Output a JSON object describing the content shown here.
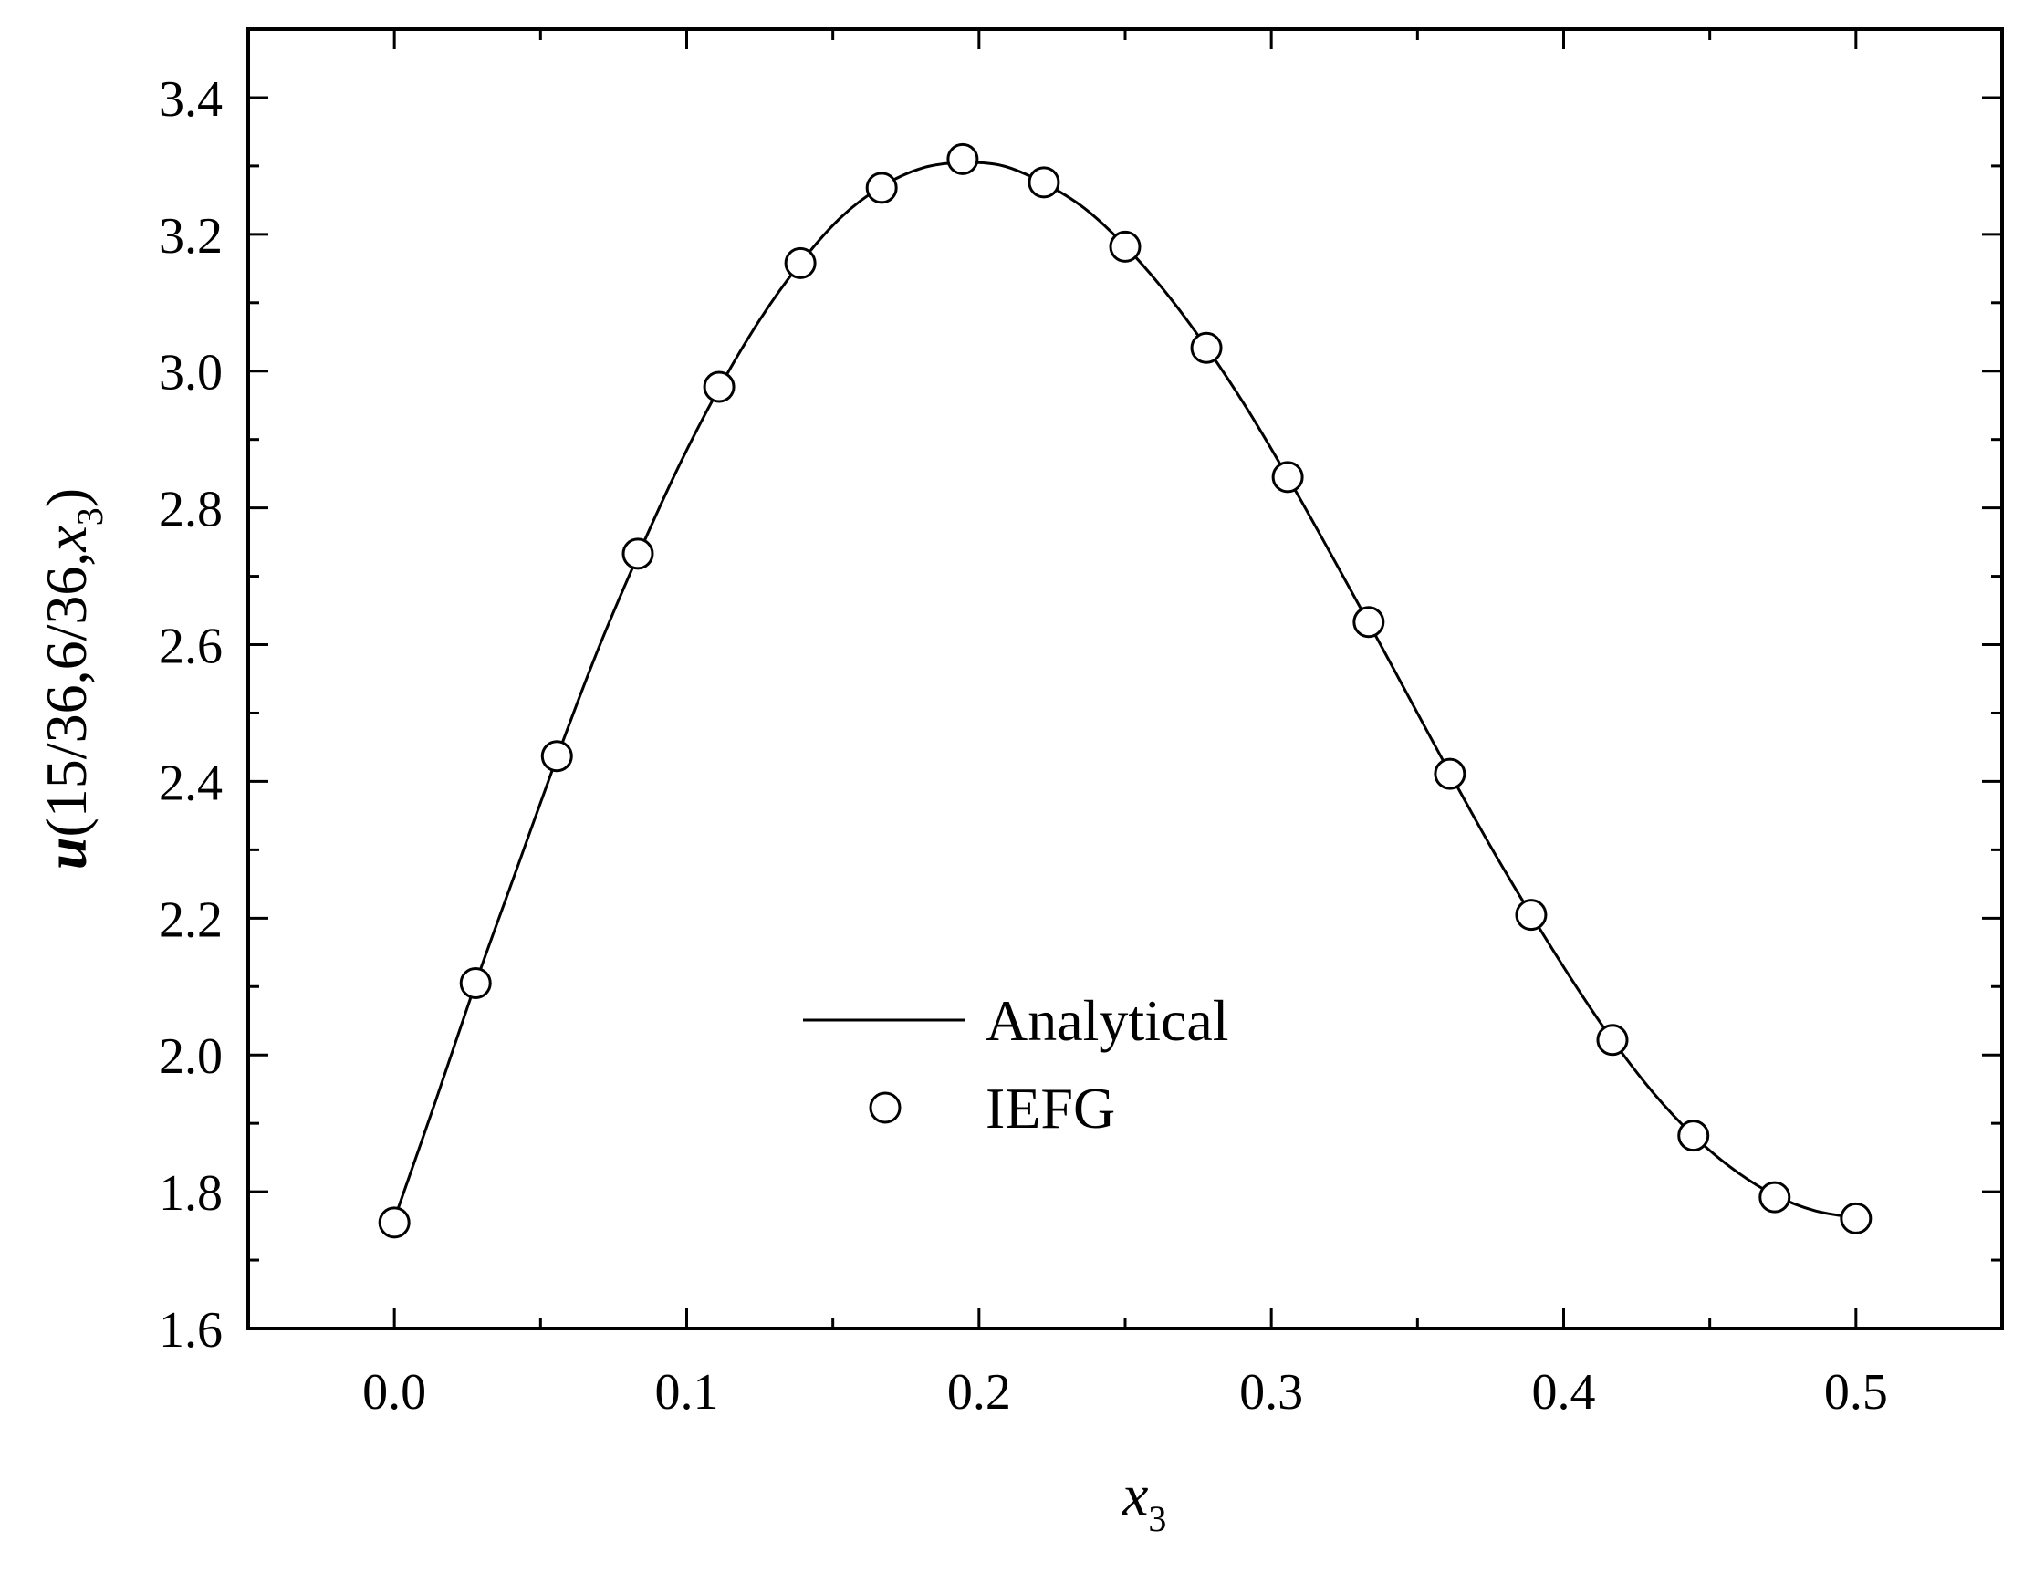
{
  "chart_data": {
    "type": "line",
    "title": "",
    "xlabel": {
      "main": "x",
      "sub": "3"
    },
    "ylabel": {
      "prefix": "u",
      "main": "(15/36,6/36,",
      "var": "x",
      "sub": "3",
      "close": ")"
    },
    "xlim": [
      -0.05,
      0.55
    ],
    "ylim": [
      1.6,
      3.5
    ],
    "xticks": [
      0.0,
      0.1,
      0.2,
      0.3,
      0.4,
      0.5
    ],
    "xtick_labels": [
      "0.0",
      "0.1",
      "0.2",
      "0.3",
      "0.4",
      "0.5"
    ],
    "yticks": [
      1.6,
      1.8,
      2.0,
      2.2,
      2.4,
      2.6,
      2.8,
      3.0,
      3.2,
      3.4
    ],
    "ytick_labels": [
      "1.6",
      "1.8",
      "2.0",
      "2.2",
      "2.4",
      "2.6",
      "2.8",
      "3.0",
      "3.2",
      "3.4"
    ],
    "grid": false,
    "legend_position": "center-bottom",
    "series": [
      {
        "name": "Analytical",
        "style": "line",
        "color": "#000000",
        "x": [
          0.0,
          0.0139,
          0.0278,
          0.0417,
          0.0556,
          0.0694,
          0.0833,
          0.0972,
          0.1111,
          0.125,
          0.1389,
          0.1528,
          0.1667,
          0.1806,
          0.1944,
          0.2083,
          0.2222,
          0.2361,
          0.25,
          0.2639,
          0.2778,
          0.2917,
          0.3056,
          0.3194,
          0.3333,
          0.3472,
          0.3611,
          0.375,
          0.3889,
          0.4028,
          0.4167,
          0.4306,
          0.4444,
          0.4583,
          0.4722,
          0.4861,
          0.5
        ],
        "y": [
          1.76,
          1.93,
          2.105,
          2.27,
          2.435,
          2.59,
          2.73,
          2.86,
          2.975,
          3.075,
          3.158,
          3.225,
          3.27,
          3.297,
          3.305,
          3.3,
          3.275,
          3.238,
          3.183,
          3.115,
          3.035,
          2.945,
          2.845,
          2.74,
          2.632,
          2.522,
          2.412,
          2.305,
          2.205,
          2.11,
          2.022,
          1.945,
          1.882,
          1.832,
          1.795,
          1.772,
          1.762
        ]
      },
      {
        "name": "IEFG",
        "style": "open-circle",
        "color": "#000000",
        "x": [
          0.0,
          0.0278,
          0.0556,
          0.0833,
          0.1111,
          0.1389,
          0.1667,
          0.1944,
          0.2222,
          0.25,
          0.2778,
          0.3056,
          0.3333,
          0.3611,
          0.3889,
          0.4167,
          0.4444,
          0.4722,
          0.5
        ],
        "y": [
          1.755,
          2.105,
          2.437,
          2.733,
          2.977,
          3.158,
          3.268,
          3.31,
          3.276,
          3.182,
          3.034,
          2.845,
          2.633,
          2.411,
          2.205,
          2.022,
          1.882,
          1.792,
          1.761
        ]
      }
    ]
  }
}
